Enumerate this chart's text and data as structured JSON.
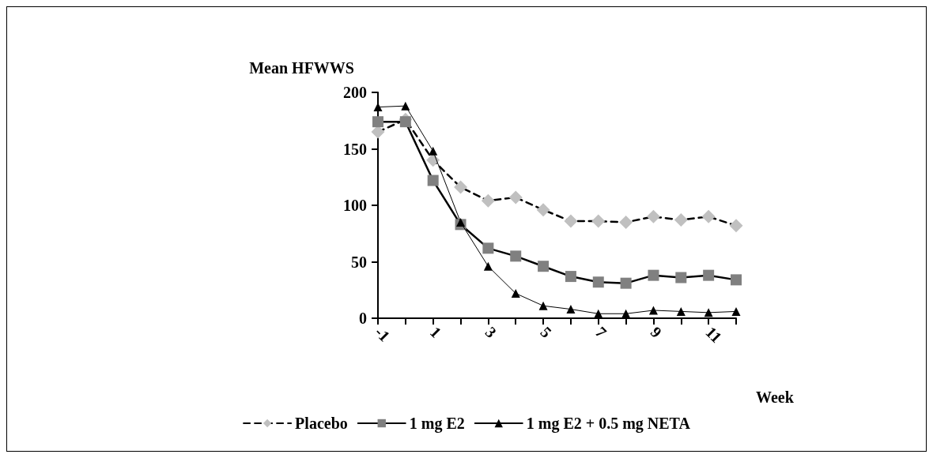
{
  "chart_data": {
    "type": "line",
    "ylabel": "Mean HFWWS",
    "xlabel": "Week",
    "categories": [
      "-1",
      null,
      "1",
      null,
      "3",
      null,
      "5",
      null,
      "7",
      null,
      "9",
      null,
      "11",
      null
    ],
    "ylim": [
      0,
      200
    ],
    "yticks": [
      0,
      50,
      100,
      150,
      200
    ],
    "grid": false,
    "legend": "bottom",
    "series": [
      {
        "name": "Placebo",
        "color": "#c0c0c0",
        "marker": "diamond",
        "line_style": "dashed",
        "values": [
          165,
          176,
          140,
          116,
          104,
          107,
          96,
          86,
          86,
          85,
          90,
          87,
          90,
          82
        ]
      },
      {
        "name": "1 mg E2",
        "color": "#808080",
        "marker": "square",
        "line_style": "solid",
        "values": [
          174,
          174,
          122,
          83,
          62,
          55,
          46,
          37,
          32,
          31,
          38,
          36,
          38,
          34
        ]
      },
      {
        "name": "1 mg E2 + 0.5 mg NETA",
        "color": "#000000",
        "marker": "triangle",
        "line_style": "solid",
        "values": [
          187,
          188,
          148,
          85,
          46,
          22,
          11,
          8,
          4,
          4,
          7,
          6,
          5,
          6
        ]
      }
    ]
  }
}
